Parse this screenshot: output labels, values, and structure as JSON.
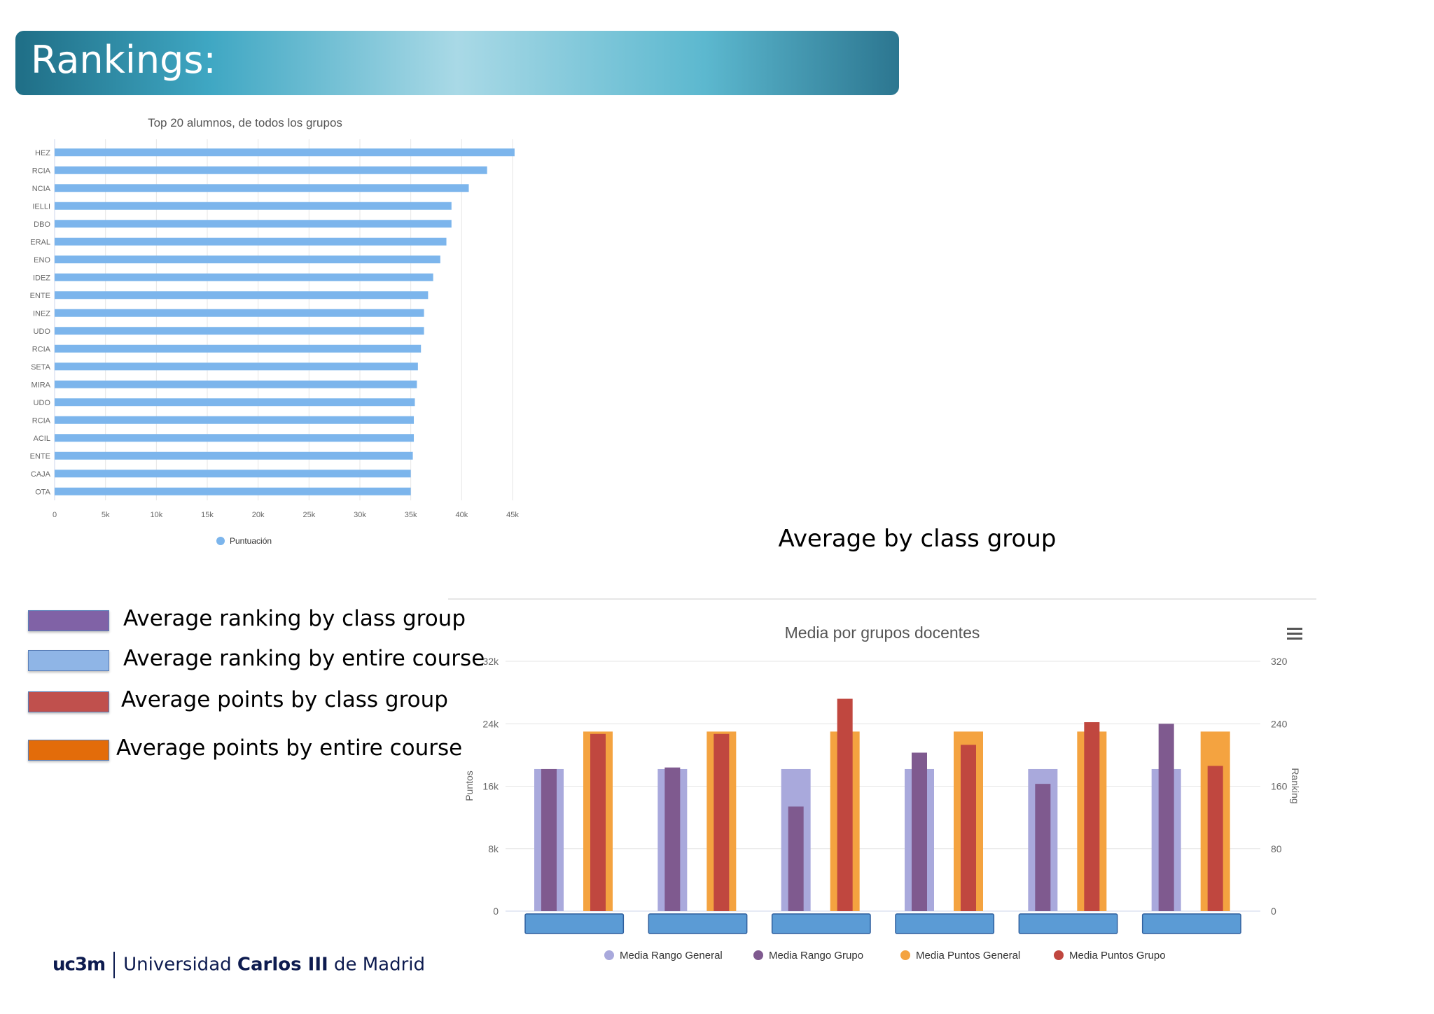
{
  "slide": {
    "title": "Rankings:",
    "subtitle_right": "Average by class group"
  },
  "legend_items": [
    {
      "label": "Average ranking by class group",
      "color": "#8062a6"
    },
    {
      "label": "Average ranking by entire course",
      "color": "#8fb5e6"
    },
    {
      "label": "Average points by class group",
      "color": "#c0504d"
    },
    {
      "label": "Average points by entire course",
      "color": "#e36c0a"
    }
  ],
  "logo": {
    "mark": "uc3m",
    "text_prefix": "Universidad ",
    "text_strong": "Carlos III",
    "text_suffix": " de Madrid"
  },
  "chart_data": [
    {
      "type": "bar",
      "orientation": "horizontal",
      "title": "Top 20 alumnos, de todos los grupos",
      "categories": [
        "HEZ",
        "RCIA",
        "NCIA",
        "IELLI",
        "DBO",
        "ERAL",
        "ENO",
        "IDEZ",
        "ENTE",
        "INEZ",
        "UDO",
        "RCIA",
        "SETA",
        "MIRA",
        "UDO",
        "RCIA",
        "ACIL",
        "ENTE",
        "CAJA",
        "OTA"
      ],
      "series": [
        {
          "name": "Puntuación",
          "color": "#7cb5ec",
          "values": [
            45200,
            42500,
            40700,
            39000,
            39000,
            38500,
            37900,
            37200,
            36700,
            36300,
            36300,
            36000,
            35700,
            35600,
            35400,
            35300,
            35300,
            35200,
            35000,
            35000
          ]
        }
      ],
      "xlim": [
        0,
        45000
      ],
      "xticks": [
        "0",
        "5k",
        "10k",
        "15k",
        "20k",
        "25k",
        "30k",
        "35k",
        "40k",
        "45k"
      ],
      "grid": "vertical",
      "legend": "bottom-center"
    },
    {
      "type": "bar",
      "title": "Media por grupos docentes",
      "categories": [
        "",
        "",
        "",
        "",
        "",
        ""
      ],
      "series": [
        {
          "name": "Media Rango General",
          "color": "#a9a9dc",
          "axis": "right",
          "values": [
            182,
            182,
            182,
            182,
            182,
            182
          ]
        },
        {
          "name": "Media Rango Grupo",
          "color": "#7f5a8f",
          "axis": "right",
          "values": [
            182,
            184,
            134,
            203,
            163,
            240
          ]
        },
        {
          "name": "Media Puntos General",
          "color": "#f4a340",
          "axis": "left",
          "values": [
            23000,
            23000,
            23000,
            23000,
            23000,
            23000
          ]
        },
        {
          "name": "Media Puntos Grupo",
          "color": "#c0473f",
          "axis": "left",
          "values": [
            22700,
            22700,
            27200,
            21300,
            24200,
            18600
          ]
        }
      ],
      "ylabel": "Puntos",
      "ylabel_right": "Ranking",
      "ylim": [
        0,
        32000
      ],
      "ylim_right": [
        0,
        320
      ],
      "yticks": [
        "0",
        "8k",
        "16k",
        "24k",
        "32k"
      ],
      "yticks_right": [
        "0",
        "80",
        "160",
        "240",
        "320"
      ],
      "grid": "horizontal",
      "legend": "bottom-center"
    }
  ]
}
